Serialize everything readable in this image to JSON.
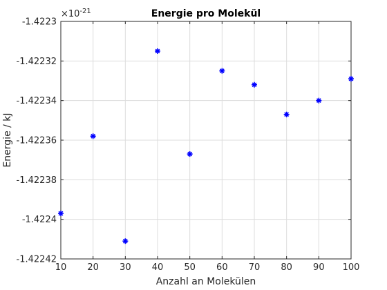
{
  "chart_data": {
    "type": "scatter",
    "title": "Energie pro Molekül",
    "xlabel": "Anzahl an Molekülen",
    "ylabel": "Energie / kJ",
    "y_exponent_label": "×10",
    "y_exponent_power": "-21",
    "xlim": [
      10,
      100
    ],
    "ylim": [
      -1.42242,
      -1.4223
    ],
    "grid": true,
    "marker": "asterisk",
    "marker_color": "#0000ff",
    "x_ticks": [
      10,
      20,
      30,
      40,
      50,
      60,
      70,
      80,
      90,
      100
    ],
    "x_tick_labels": [
      "10",
      "20",
      "30",
      "40",
      "50",
      "60",
      "70",
      "80",
      "90",
      "100"
    ],
    "y_ticks": [
      -1.4223,
      -1.42232,
      -1.42234,
      -1.42236,
      -1.42238,
      -1.4224,
      -1.42242
    ],
    "y_tick_labels": [
      "-1.4223",
      "-1.42232",
      "-1.42234",
      "-1.42236",
      "-1.42238",
      "-1.4224",
      "-1.42242"
    ],
    "x": [
      10,
      20,
      30,
      40,
      50,
      60,
      70,
      80,
      90,
      100
    ],
    "values": [
      -1.422397,
      -1.422358,
      -1.422411,
      -1.422315,
      -1.422367,
      -1.422325,
      -1.422332,
      -1.422347,
      -1.42234,
      -1.422329
    ]
  }
}
